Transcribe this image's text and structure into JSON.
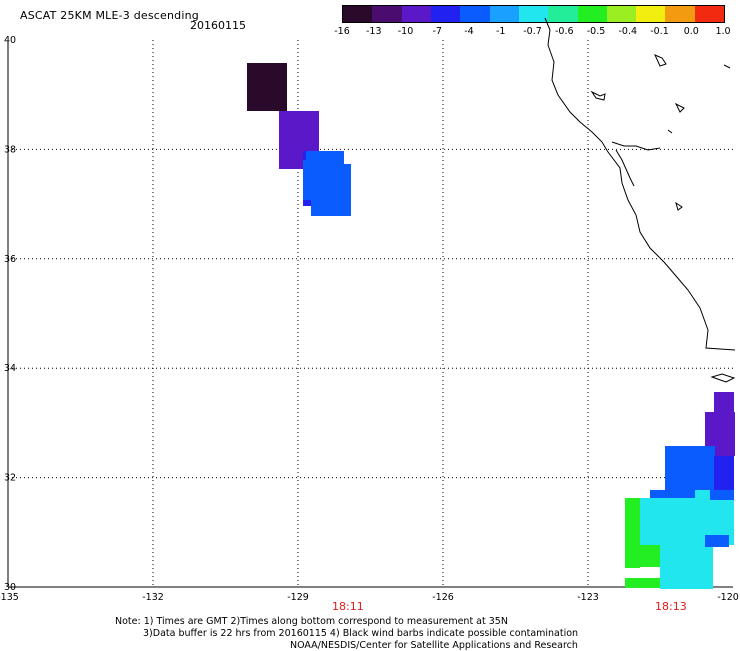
{
  "title": "ASCAT 25KM MLE-3 descending",
  "date": "20160115",
  "colorbar": {
    "labels": [
      "-16",
      "-13",
      "-10",
      "-7",
      "-4",
      "-1",
      "-0.7",
      "-0.6",
      "-0.5",
      "-0.4",
      "-0.1",
      "0.0",
      "1.0"
    ],
    "colors": [
      "#2a0a2a",
      "#4a0c6e",
      "#5a18c8",
      "#2222f0",
      "#0a5cff",
      "#1aa0ff",
      "#22e6ee",
      "#22ee9a",
      "#22ee22",
      "#9aee22",
      "#f2ee10",
      "#f29a10",
      "#f22a10"
    ]
  },
  "axes": {
    "x_ticks": [
      "-135",
      "-132",
      "-129",
      "-126",
      "-123",
      "-120"
    ],
    "y_ticks": [
      "40",
      "38",
      "36",
      "34",
      "32",
      "30"
    ],
    "x_range": [
      -135,
      -120
    ],
    "y_range": [
      30,
      40
    ]
  },
  "times": [
    "18:11",
    "18:13"
  ],
  "notes": [
    "Note: 1) Times are GMT 2)Times along bottom correspond to measurement at 35N",
    "3)Data buffer is 22 hrs from 20160115 4) Black wind barbs indicate possible contamination",
    "NOAA/NESDIS/Center for Satellite Applications and Research"
  ]
}
